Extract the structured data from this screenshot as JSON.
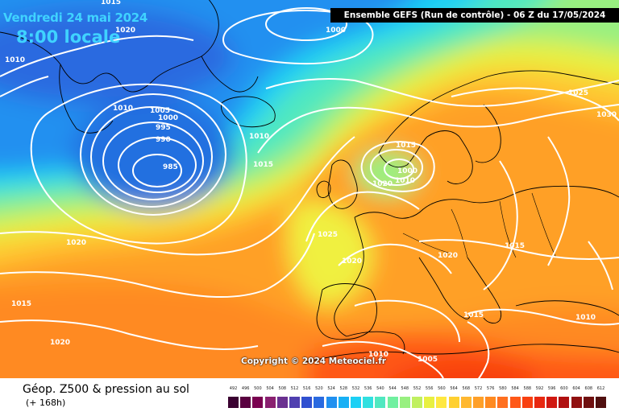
{
  "header": {
    "date": "Vendredi 24 mai 2024",
    "time": "8:00 locale",
    "run": "Ensemble GEFS  (Run de contrôle)  -  06 Z du 17/05/2024"
  },
  "copyright": "Copyright © 2024 Meteociel.fr",
  "footer": {
    "title": "Géop. Z500 & pression au sol",
    "range": "(+ 168h)"
  },
  "scale": {
    "labels": [
      "492",
      "496",
      "500",
      "504",
      "508",
      "512",
      "516",
      "520",
      "524",
      "528",
      "532",
      "536",
      "540",
      "544",
      "548",
      "552",
      "556",
      "560",
      "564",
      "568",
      "572",
      "576",
      "580",
      "584",
      "588",
      "592",
      "596",
      "600",
      "604",
      "608",
      "612"
    ],
    "colors": [
      "#3a0030",
      "#5a0040",
      "#7a0050",
      "#8a2070",
      "#6a3090",
      "#5040b0",
      "#3050d0",
      "#2a6ae0",
      "#2090f0",
      "#18b0f5",
      "#1cd0f5",
      "#30e0e0",
      "#50e8c0",
      "#70f0a0",
      "#98f080",
      "#c0f060",
      "#e8f040",
      "#ffe840",
      "#ffd030",
      "#ffb830",
      "#ffa028",
      "#ff8a20",
      "#ff7020",
      "#ff5818",
      "#f84010",
      "#e82810",
      "#d01810",
      "#b01010",
      "#901010",
      "#701010",
      "#501010"
    ]
  },
  "isobars": [
    "1015",
    "1020",
    "1000",
    "1010",
    "1010",
    "1005",
    "1000",
    "995",
    "990",
    "985",
    "1010",
    "1015",
    "1015",
    "1000",
    "1010",
    "1020",
    "1025",
    "1030",
    "1020",
    "1025",
    "1020",
    "1015",
    "1020",
    "1015",
    "1015",
    "1010",
    "1020",
    "1010",
    "1005"
  ],
  "colors": {
    "isobar": "#ffffff",
    "coast": "#000000",
    "title_accent": "#3fd3ff"
  }
}
